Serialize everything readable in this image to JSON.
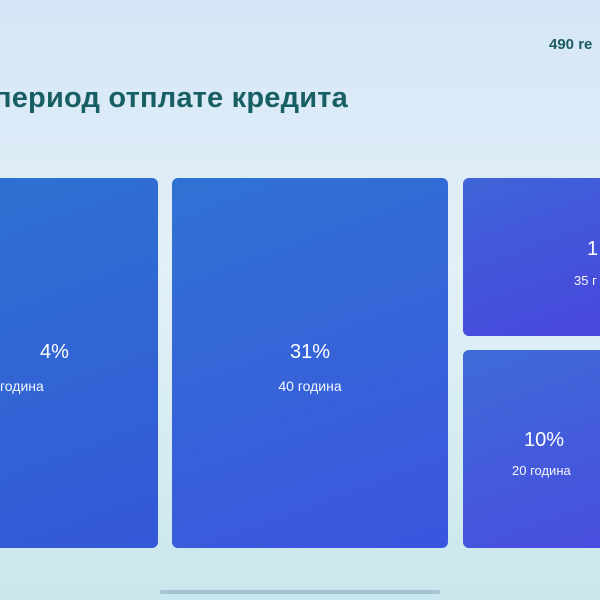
{
  "header": {
    "title": "период отплате кредита",
    "counter": "490 re"
  },
  "tiles": [
    {
      "percent": "4%",
      "label": "година"
    },
    {
      "percent": "31%",
      "label": "40 година"
    },
    {
      "percent": "1",
      "label": "35 г"
    },
    {
      "percent": "10%",
      "label": "20 година"
    }
  ],
  "colors": {
    "title": "#175f63",
    "tile_blue": "#3458d8",
    "tile_violet": "#4a44dd"
  }
}
